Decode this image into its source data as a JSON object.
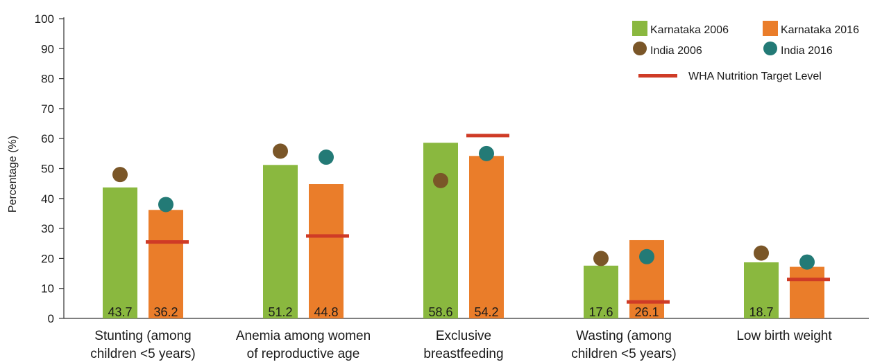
{
  "chart_data": {
    "type": "bar",
    "ylabel": "Percentage (%)",
    "ylim": [
      0,
      100
    ],
    "yticks": [
      "0",
      "10",
      "20",
      "30",
      "40",
      "50",
      "60",
      "70",
      "80",
      "90",
      "100"
    ],
    "grid": false,
    "legend_position": "top-right",
    "categories": [
      [
        "Stunting (among",
        "children <5 years)"
      ],
      [
        "Anemia among women",
        "of reproductive age"
      ],
      [
        "Exclusive",
        "breastfeeding"
      ],
      [
        "Wasting (among",
        "children <5 years)"
      ],
      [
        "Low birth weight"
      ]
    ],
    "bar_series": [
      {
        "name": "Karnataka 2006",
        "color": "#8ab83f",
        "values": [
          43.7,
          51.2,
          58.6,
          17.6,
          18.7
        ],
        "labels": [
          "43.7",
          "51.2",
          "58.6",
          "17.6",
          "18.7"
        ]
      },
      {
        "name": "Karnataka 2016",
        "color": "#ea7d2a",
        "values": [
          36.2,
          44.8,
          54.2,
          26.1,
          17.2
        ],
        "labels": [
          "36.2",
          "44.8",
          "54.2",
          "26.1",
          ""
        ]
      }
    ],
    "point_series": [
      {
        "name": "India 2006",
        "color": "#7a5628",
        "values": [
          48.0,
          55.8,
          46.0,
          20.0,
          21.8
        ]
      },
      {
        "name": "India 2016",
        "color": "#237a76",
        "values": [
          38.0,
          53.8,
          55.0,
          20.6,
          18.8
        ]
      }
    ],
    "target_series": {
      "name": "WHA Nutrition Target Level",
      "color": "#cf3b26",
      "values": [
        25.5,
        27.5,
        61.0,
        5.5,
        13.0
      ]
    }
  }
}
